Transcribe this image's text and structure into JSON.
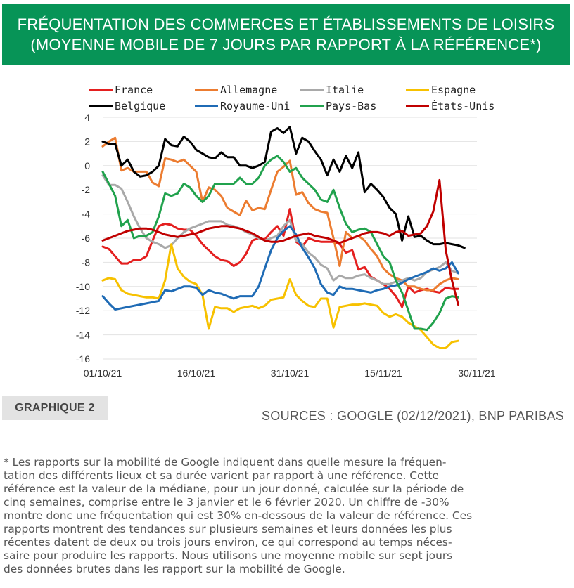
{
  "header": {
    "title_line1": "FRÉQUENTATION DES COMMERCES ET ÉTABLISSEMENTS DE LOISIRS",
    "title_line2": "(MOYENNE MOBILE DE 7 JOURS PAR RAPPORT À LA RÉFÉRENCE*)"
  },
  "figure_label": "GRAPHIQUE 2",
  "sources": "SOURCES : GOOGLE (02/12/2021), BNP PARIBAS",
  "footnote_lines": [
    "* Les rapports sur la mobilité de Google indiquent dans quelle mesure la fréquen-",
    "tation des différents lieux et sa durée varient par rapport à une référence. Cette",
    "référence est la valeur de la médiane, pour un jour donné, calculée sur la période de",
    "cinq semaines, comprise entre le 3 janvier et le 6 février 2020. Un chiffre de -30%",
    "montre donc une fréquentation qui est 30% en-dessous de la valeur de référence. Ces",
    "rapports montrent des tendances sur plusieurs semaines et leurs données les plus",
    "récentes datent de deux ou trois jours environ, ce qui correspond au temps néces-",
    "saire pour produire les rapports. Nous utilisons une moyenne mobile sur sept jours",
    "des données brutes dans les rapport sur la mobilité de Google."
  ],
  "chart_data": {
    "type": "line",
    "title": "",
    "xlabel": "",
    "ylabel": "",
    "ylim": [
      -16,
      4
    ],
    "yticks": [
      4,
      2,
      0,
      -2,
      -4,
      -6,
      -8,
      -10,
      -12,
      -14,
      -16
    ],
    "xlim_days": [
      0,
      60
    ],
    "xticks": [
      {
        "label": "01/10/21",
        "day": 0
      },
      {
        "label": "16/10/21",
        "day": 15
      },
      {
        "label": "31/10/21",
        "day": 30
      },
      {
        "label": "15/11/21",
        "day": 45
      },
      {
        "label": "30/11/21",
        "day": 60
      }
    ],
    "grid": "horizontal",
    "legend_position": "top",
    "x": [
      "01/10",
      "02/10",
      "03/10",
      "04/10",
      "05/10",
      "06/10",
      "07/10",
      "08/10",
      "09/10",
      "10/10",
      "11/10",
      "12/10",
      "13/10",
      "14/10",
      "15/10",
      "16/10",
      "17/10",
      "18/10",
      "19/10",
      "20/10",
      "21/10",
      "22/10",
      "23/10",
      "24/10",
      "25/10",
      "26/10",
      "27/10",
      "28/10",
      "29/10",
      "30/10",
      "31/10",
      "01/11",
      "02/11",
      "03/11",
      "04/11",
      "05/11",
      "06/11",
      "07/11",
      "08/11",
      "09/11",
      "10/11",
      "11/11",
      "12/11",
      "13/11",
      "14/11",
      "15/11",
      "16/11",
      "17/11",
      "18/11",
      "19/11",
      "20/11",
      "21/11",
      "22/11",
      "23/11",
      "24/11",
      "25/11",
      "26/11",
      "27/11",
      "28/11"
    ],
    "series": [
      {
        "name": "France",
        "color": "#e41f1f",
        "values": [
          -6.7,
          -6.9,
          -7.5,
          -8.1,
          -8.1,
          -7.8,
          -7.8,
          -7.5,
          -6.2,
          -5.0,
          -4.8,
          -4.9,
          -5.2,
          -5.3,
          -5.3,
          -5.8,
          -6.5,
          -7.0,
          -7.5,
          -7.8,
          -7.9,
          -8.3,
          -8.0,
          -7.3,
          -6.2,
          -6.0,
          -6.1,
          -5.5,
          -5.0,
          -5.8,
          -3.6,
          -6.3,
          -6.7,
          -6.0,
          -6.2,
          -6.3,
          -6.3,
          -6.3,
          -6.5,
          -7.2,
          -7.0,
          -8.6,
          -8.4,
          -9.2,
          -9.5,
          -9.8,
          -10.2,
          -10.8,
          -11.7,
          -10.0,
          -10.5,
          -10.3,
          -10.2,
          -10.4,
          -10.5,
          -10.1,
          -10.2,
          -10.2,
          null
        ]
      },
      {
        "name": "Allemagne",
        "color": "#ec7c30",
        "values": [
          1.6,
          2.0,
          2.3,
          -0.4,
          -0.2,
          -0.5,
          -0.5,
          -0.5,
          -1.4,
          -1.7,
          0.6,
          0.5,
          0.3,
          0.5,
          0.0,
          -0.5,
          -3.0,
          -1.8,
          -2.0,
          -2.5,
          -3.5,
          -3.8,
          -4.1,
          -2.9,
          -3.7,
          -3.5,
          -3.6,
          -2.0,
          -0.5,
          -0.1,
          0.4,
          -2.4,
          -2.2,
          -3.1,
          -3.6,
          -3.8,
          -3.9,
          -6.0,
          -8.3,
          -5.5,
          -6.0,
          -5.8,
          -6.2,
          -6.9,
          -7.5,
          -8.5,
          -9.0,
          -9.3,
          -9.5,
          -10.0,
          -10.0,
          -10.2,
          -10.3,
          -10.3,
          -9.8,
          -9.5,
          -9.3,
          -9.4,
          null
        ]
      },
      {
        "name": "Italie",
        "color": "#a9a9a9",
        "values": [
          -0.8,
          -1.6,
          -1.6,
          -1.9,
          -3.0,
          -4.2,
          -5.2,
          -6.0,
          -6.3,
          -6.5,
          -6.8,
          -6.6,
          -6.0,
          -5.5,
          -5.2,
          -5.0,
          -4.8,
          -4.6,
          -4.6,
          -4.6,
          -4.9,
          -5.0,
          -5.2,
          -5.5,
          -5.7,
          -6.0,
          -6.2,
          -6.0,
          -5.8,
          -5.0,
          -4.5,
          -6.2,
          -6.5,
          -7.2,
          -7.6,
          -8.2,
          -8.5,
          -9.5,
          -9.1,
          -9.3,
          -9.3,
          -9.1,
          -9.0,
          -9.3,
          -9.5,
          -9.8,
          -9.8,
          -9.6,
          -9.5,
          -9.3,
          -9.5,
          -9.3,
          -8.8,
          -8.6,
          -8.4,
          -8.0,
          -8.7,
          -8.9,
          null
        ]
      },
      {
        "name": "Espagne",
        "color": "#f7c100",
        "values": [
          -9.5,
          -9.3,
          -9.4,
          -10.3,
          -10.6,
          -10.7,
          -10.8,
          -10.9,
          -10.9,
          -11.0,
          -9.5,
          -6.5,
          -8.5,
          -9.2,
          -9.6,
          -9.8,
          -10.7,
          -13.5,
          -11.7,
          -11.8,
          -11.8,
          -12.1,
          -11.8,
          -11.7,
          -11.6,
          -11.8,
          -11.6,
          -11.1,
          -11.0,
          -10.9,
          -9.4,
          -10.7,
          -11.2,
          -11.6,
          -11.7,
          -11.0,
          -11.0,
          -13.4,
          -11.7,
          -11.6,
          -11.5,
          -11.5,
          -11.4,
          -11.5,
          -11.6,
          -12.2,
          -12.5,
          -12.3,
          -12.5,
          -13.0,
          -13.3,
          -13.6,
          -14.2,
          -14.8,
          -15.1,
          -15.1,
          -14.6,
          -14.5,
          null
        ]
      },
      {
        "name": "Belgique",
        "color": "#000000",
        "values": [
          2.0,
          1.8,
          1.8,
          0.0,
          0.5,
          -0.5,
          -0.9,
          -0.8,
          -0.5,
          0.0,
          2.2,
          1.7,
          1.6,
          2.4,
          2.0,
          1.3,
          1.0,
          0.7,
          0.6,
          1.1,
          0.7,
          0.7,
          0.0,
          0.0,
          -0.2,
          0.0,
          0.3,
          2.8,
          3.1,
          2.7,
          3.2,
          1.0,
          2.3,
          2.0,
          1.2,
          0.5,
          -0.8,
          0.5,
          -0.5,
          0.8,
          -0.2,
          1.1,
          -2.2,
          -1.5,
          -2.0,
          -2.6,
          -3.5,
          -4.0,
          -6.2,
          -4.2,
          -5.9,
          -5.8,
          -6.2,
          -6.5,
          -6.5,
          -6.4,
          -6.5,
          -6.6,
          -6.8
        ]
      },
      {
        "name": "Royaume-Uni",
        "color": "#1f6bb5",
        "values": [
          -10.8,
          -11.4,
          -11.9,
          -11.8,
          -11.7,
          -11.6,
          -11.5,
          -11.4,
          -11.3,
          -11.2,
          -10.3,
          -10.4,
          -10.2,
          -10.0,
          -10.0,
          -10.1,
          -10.7,
          -10.3,
          -10.5,
          -10.6,
          -10.8,
          -11.0,
          -10.8,
          -10.8,
          -10.8,
          -10.0,
          -8.5,
          -7.0,
          -6.0,
          -5.4,
          -5.0,
          -5.7,
          -6.8,
          -7.6,
          -8.5,
          -9.8,
          -10.5,
          -10.7,
          -10.0,
          -10.2,
          -10.2,
          -10.3,
          -10.4,
          -10.5,
          -10.3,
          -10.2,
          -10.0,
          -9.9,
          -9.7,
          -9.4,
          -9.2,
          -9.0,
          -8.8,
          -8.5,
          -8.7,
          -8.5,
          -8.0,
          -8.9,
          null
        ]
      },
      {
        "name": "Pays-Bas",
        "color": "#21a24d",
        "values": [
          -0.5,
          -1.5,
          -2.5,
          -5.0,
          -4.5,
          -6.0,
          -5.8,
          -5.8,
          -5.5,
          -4.2,
          -2.3,
          -2.5,
          -2.3,
          -1.5,
          -1.8,
          -2.5,
          -3.0,
          -2.5,
          -1.5,
          -1.5,
          -1.5,
          -1.5,
          -1.0,
          -1.5,
          -1.5,
          -1.0,
          0.0,
          0.5,
          0.8,
          0.3,
          -0.5,
          -0.2,
          -1.0,
          -1.5,
          -2.0,
          -2.8,
          -3.0,
          -2.0,
          -3.5,
          -4.8,
          -5.5,
          -5.3,
          -5.2,
          -5.5,
          -6.5,
          -7.5,
          -8.0,
          -9.5,
          -10.5,
          -12.0,
          -13.5,
          -13.5,
          -13.6,
          -13.0,
          -12.2,
          -11.0,
          -10.8,
          -10.9,
          null
        ]
      },
      {
        "name": "États-Unis",
        "color": "#c00000",
        "values": [
          -6.2,
          -6.0,
          -5.8,
          -5.6,
          -5.4,
          -5.3,
          -5.2,
          -5.2,
          -5.3,
          -5.5,
          -5.7,
          -5.8,
          -5.9,
          -5.8,
          -5.7,
          -5.6,
          -5.4,
          -5.2,
          -5.1,
          -5.0,
          -5.0,
          -5.1,
          -5.2,
          -5.4,
          -5.6,
          -5.9,
          -6.2,
          -6.3,
          -6.3,
          -6.2,
          -6.0,
          -5.8,
          -5.7,
          -5.6,
          -5.8,
          -5.9,
          -6.0,
          -6.2,
          -6.4,
          -6.2,
          -6.0,
          -5.8,
          -5.6,
          -5.5,
          -5.5,
          -5.6,
          -5.8,
          -5.5,
          -5.4,
          -5.8,
          -5.7,
          -5.6,
          -5.0,
          -3.8,
          -1.2,
          -7.0,
          -9.5,
          -11.5,
          null
        ]
      }
    ]
  }
}
